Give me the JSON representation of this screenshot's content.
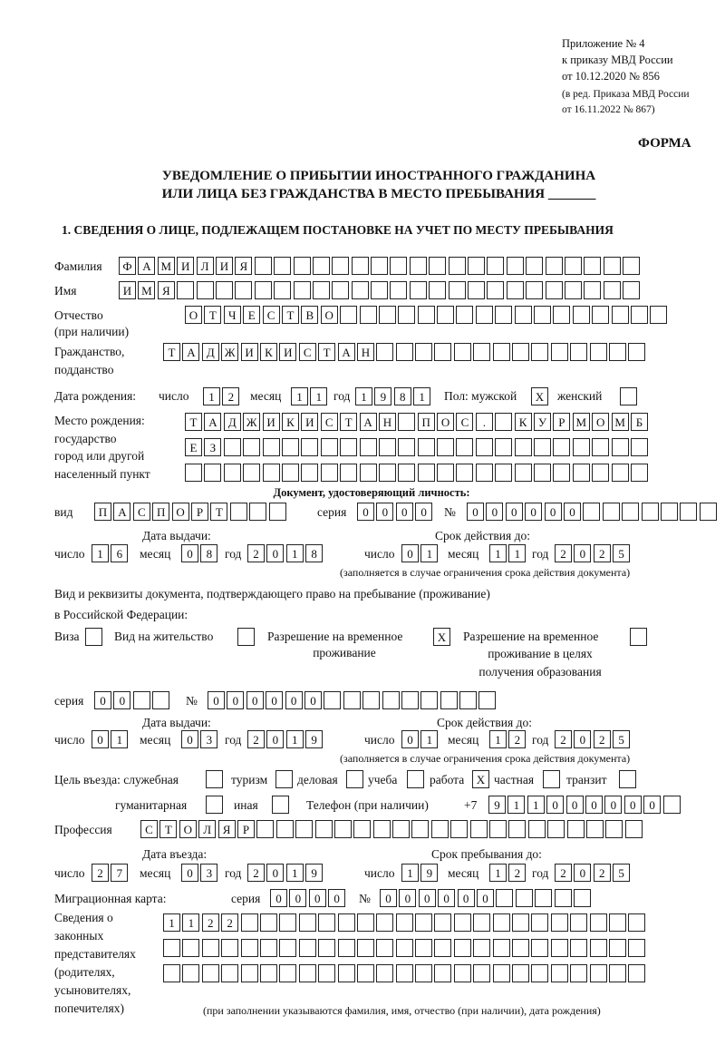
{
  "header": {
    "line1": "Приложение № 4",
    "line2": "к приказу МВД России",
    "line3": "от 10.12.2020 № 856",
    "line4": "(в ред. Приказа МВД России",
    "line5": "от 16.11.2022 № 867)",
    "forma": "ФОРМА"
  },
  "title": {
    "line1": "УВЕДОМЛЕНИЕ О ПРИБЫТИИ ИНОСТРАННОГО ГРАЖДАНИНА",
    "line2": "ИЛИ ЛИЦА БЕЗ ГРАЖДАНСТВА В МЕСТО ПРЕБЫВАНИЯ _______"
  },
  "section1": "1. СВЕДЕНИЯ О ЛИЦЕ, ПОДЛЕЖАЩЕМ ПОСТАНОВКЕ НА УЧЕТ ПО МЕСТУ ПРЕБЫВАНИЯ",
  "labels": {
    "surname": "Фамилия",
    "name": "Имя",
    "patronymic": "Отчество",
    "patronymic2": "(при наличии)",
    "citizenship": "Гражданство,",
    "citizenship2": "подданство",
    "dob": "Дата рождения:",
    "day": "число",
    "month": "месяц",
    "year": "год",
    "sex": "Пол: мужской",
    "female": "женский",
    "pob1": "Место рождения:",
    "pob2": "государство",
    "pob3": "город или другой",
    "pob4": "населенный пункт",
    "iddoc": "Документ, удостоверяющий личность:",
    "kind": "вид",
    "series": "серия",
    "number": "№",
    "issue_date": "Дата выдачи:",
    "valid_until": "Срок действия до:",
    "valid_note": "(заполняется в случае ограничения срока действия документа)",
    "right_doc1": "Вид и реквизиты документа, подтверждающего право на пребывание (проживание)",
    "right_doc2": "в Российской Федерации:",
    "visa": "Виза",
    "residence": "Вид на жительство",
    "trp1": "Разрешение на временное",
    "trp2": "проживание",
    "trpe1": "Разрешение на временное",
    "trpe2": "проживание в целях",
    "trpe3": "получения образования",
    "purpose": "Цель въезда: служебная",
    "tourism": "туризм",
    "business": "деловая",
    "study": "учеба",
    "work": "работа",
    "private": "частная",
    "transit": "транзит",
    "humanitarian": "гуманитарная",
    "other": "иная",
    "phone": "Телефон (при наличии)",
    "phone_prefix": "+7",
    "profession": "Профессия",
    "entry_date": "Дата въезда:",
    "stay_until": "Срок пребывания до:",
    "migration_card": "Миграционная карта:",
    "rep1": "Сведения о",
    "rep2": "законных",
    "rep3": "представителях",
    "rep4": "(родителях,",
    "rep5": "усыновителях,",
    "rep6": "попечителях)",
    "rep_note": "(при заполнении указываются фамилия, имя, отчество (при наличии), дата рождения)"
  },
  "person": {
    "surname": [
      "Ф",
      "А",
      "М",
      "И",
      "Л",
      "И",
      "Я",
      "",
      "",
      "",
      "",
      "",
      "",
      "",
      "",
      "",
      "",
      "",
      "",
      "",
      "",
      "",
      "",
      "",
      "",
      "",
      ""
    ],
    "name": [
      "И",
      "М",
      "Я",
      "",
      "",
      "",
      "",
      "",
      "",
      "",
      "",
      "",
      "",
      "",
      "",
      "",
      "",
      "",
      "",
      "",
      "",
      "",
      "",
      "",
      "",
      "",
      ""
    ],
    "patronymic": [
      "О",
      "Т",
      "Ч",
      "Е",
      "С",
      "Т",
      "В",
      "О",
      "",
      "",
      "",
      "",
      "",
      "",
      "",
      "",
      "",
      "",
      "",
      "",
      "",
      "",
      "",
      "",
      ""
    ],
    "citizenship": [
      "Т",
      "А",
      "Д",
      "Ж",
      "И",
      "К",
      "И",
      "С",
      "Т",
      "А",
      "Н",
      "",
      "",
      "",
      "",
      "",
      "",
      "",
      "",
      "",
      "",
      "",
      "",
      "",
      ""
    ],
    "dob_day": [
      "1",
      "2"
    ],
    "dob_month": [
      "1",
      "1"
    ],
    "dob_year": [
      "1",
      "9",
      "8",
      "1"
    ],
    "sex_male": [
      "X"
    ],
    "sex_female": [
      ""
    ],
    "pob1": [
      "Т",
      "А",
      "Д",
      "Ж",
      "И",
      "К",
      "И",
      "С",
      "Т",
      "А",
      "Н",
      "",
      "П",
      "О",
      "С",
      ".",
      "",
      "К",
      "У",
      "Р",
      "М",
      "О",
      "М",
      "Б"
    ],
    "pob2": [
      "Е",
      "З",
      "",
      "",
      "",
      "",
      "",
      "",
      "",
      "",
      "",
      "",
      "",
      "",
      "",
      "",
      "",
      "",
      "",
      "",
      "",
      "",
      "",
      ""
    ],
    "pob3": [
      "",
      "",
      "",
      "",
      "",
      "",
      "",
      "",
      "",
      "",
      "",
      "",
      "",
      "",
      "",
      "",
      "",
      "",
      "",
      "",
      "",
      "",
      "",
      ""
    ],
    "doc_kind": [
      "П",
      "А",
      "С",
      "П",
      "О",
      "Р",
      "Т",
      "",
      "",
      ""
    ],
    "doc_series": [
      "0",
      "0",
      "0",
      "0"
    ],
    "doc_number": [
      "0",
      "0",
      "0",
      "0",
      "0",
      "0",
      "",
      "",
      "",
      "",
      "",
      "",
      ""
    ],
    "doc_issue_day": [
      "1",
      "6"
    ],
    "doc_issue_month": [
      "0",
      "8"
    ],
    "doc_issue_year": [
      "2",
      "0",
      "1",
      "8"
    ],
    "doc_valid_day": [
      "0",
      "1"
    ],
    "doc_valid_month": [
      "1",
      "1"
    ],
    "doc_valid_year": [
      "2",
      "0",
      "2",
      "5"
    ],
    "visa": [
      ""
    ],
    "residence": [
      ""
    ],
    "trp": [
      "X"
    ],
    "trpe": [
      ""
    ],
    "rd_series": [
      "0",
      "0",
      "",
      ""
    ],
    "rd_number": [
      "0",
      "0",
      "0",
      "0",
      "0",
      "0",
      "",
      "",
      "",
      "",
      "",
      "",
      "",
      "",
      ""
    ],
    "rd_issue_day": [
      "0",
      "1"
    ],
    "rd_issue_month": [
      "0",
      "3"
    ],
    "rd_issue_year": [
      "2",
      "0",
      "1",
      "9"
    ],
    "rd_valid_day": [
      "0",
      "1"
    ],
    "rd_valid_month": [
      "1",
      "2"
    ],
    "rd_valid_year": [
      "2",
      "0",
      "2",
      "5"
    ],
    "p_service": [
      ""
    ],
    "p_tourism": [
      ""
    ],
    "p_business": [
      ""
    ],
    "p_study": [
      ""
    ],
    "p_work": [
      "X"
    ],
    "p_private": [
      ""
    ],
    "p_transit": [
      ""
    ],
    "p_humanitarian": [
      ""
    ],
    "p_other": [
      ""
    ],
    "phone": [
      "9",
      "1",
      "1",
      "0",
      "0",
      "0",
      "0",
      "0",
      "0",
      ""
    ],
    "profession": [
      "С",
      "Т",
      "О",
      "Л",
      "Я",
      "Р",
      "",
      "",
      "",
      "",
      "",
      "",
      "",
      "",
      "",
      "",
      "",
      "",
      "",
      "",
      "",
      "",
      "",
      "",
      "",
      ""
    ],
    "entry_day": [
      "2",
      "7"
    ],
    "entry_month": [
      "0",
      "3"
    ],
    "entry_year": [
      "2",
      "0",
      "1",
      "9"
    ],
    "stay_day": [
      "1",
      "9"
    ],
    "stay_month": [
      "1",
      "2"
    ],
    "stay_year": [
      "2",
      "0",
      "2",
      "5"
    ],
    "mc_series": [
      "0",
      "0",
      "0",
      "0"
    ],
    "mc_number": [
      "0",
      "0",
      "0",
      "0",
      "0",
      "0",
      "",
      "",
      "",
      "",
      ""
    ],
    "rep1": [
      "1",
      "1",
      "2",
      "2",
      "",
      "",
      "",
      "",
      "",
      "",
      "",
      "",
      "",
      "",
      "",
      "",
      "",
      "",
      "",
      "",
      "",
      "",
      "",
      "",
      ""
    ],
    "rep2": [
      "",
      "",
      "",
      "",
      "",
      "",
      "",
      "",
      "",
      "",
      "",
      "",
      "",
      "",
      "",
      "",
      "",
      "",
      "",
      "",
      "",
      "",
      "",
      "",
      ""
    ],
    "rep3": [
      "",
      "",
      "",
      "",
      "",
      "",
      "",
      "",
      "",
      "",
      "",
      "",
      "",
      "",
      "",
      "",
      "",
      "",
      "",
      "",
      "",
      "",
      "",
      "",
      ""
    ]
  }
}
